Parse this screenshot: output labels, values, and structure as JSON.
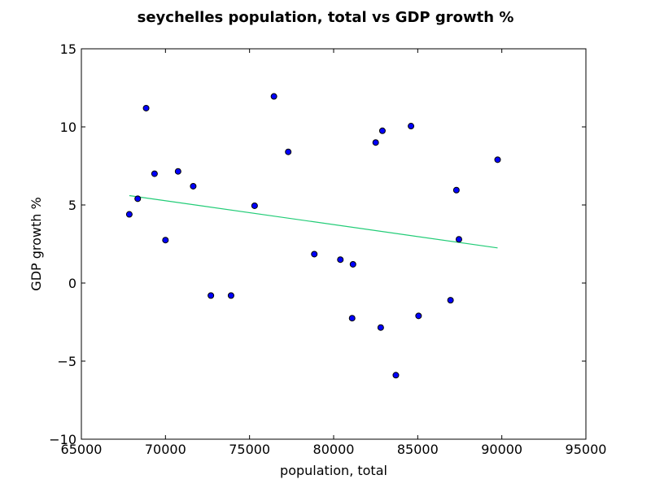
{
  "chart_data": {
    "type": "scatter",
    "title": "seychelles population, total vs GDP growth %",
    "xlabel": "population, total",
    "ylabel": "GDP growth %",
    "xlim": [
      65000,
      95000
    ],
    "ylim": [
      -10,
      15
    ],
    "xticks": [
      65000,
      70000,
      75000,
      80000,
      85000,
      90000,
      95000
    ],
    "yticks": [
      -10,
      -5,
      0,
      5,
      10,
      15
    ],
    "grid": false,
    "points": [
      {
        "x": 67850,
        "y": 4.4
      },
      {
        "x": 68350,
        "y": 5.4
      },
      {
        "x": 68850,
        "y": 11.2
      },
      {
        "x": 69350,
        "y": 7.0
      },
      {
        "x": 70000,
        "y": 2.75
      },
      {
        "x": 70750,
        "y": 7.15
      },
      {
        "x": 71650,
        "y": 6.2
      },
      {
        "x": 72700,
        "y": -0.8
      },
      {
        "x": 73900,
        "y": -0.8
      },
      {
        "x": 75300,
        "y": 4.95
      },
      {
        "x": 76450,
        "y": 11.95
      },
      {
        "x": 77300,
        "y": 8.4
      },
      {
        "x": 78850,
        "y": 1.85
      },
      {
        "x": 80400,
        "y": 1.5
      },
      {
        "x": 81100,
        "y": -2.25
      },
      {
        "x": 81150,
        "y": 1.2
      },
      {
        "x": 82500,
        "y": 9.0
      },
      {
        "x": 82800,
        "y": -2.85
      },
      {
        "x": 82900,
        "y": 9.75
      },
      {
        "x": 83700,
        "y": -5.9
      },
      {
        "x": 84600,
        "y": 10.05
      },
      {
        "x": 85050,
        "y": -2.1
      },
      {
        "x": 86950,
        "y": -1.1
      },
      {
        "x": 87300,
        "y": 5.95
      },
      {
        "x": 87450,
        "y": 2.8
      },
      {
        "x": 89750,
        "y": 7.9
      }
    ],
    "trendline": {
      "x": [
        67850,
        89750
      ],
      "y": [
        5.6,
        2.25
      ]
    },
    "colors": {
      "points": "#0000ff",
      "point_edge": "#000000",
      "trendline": "#22cc77"
    }
  }
}
